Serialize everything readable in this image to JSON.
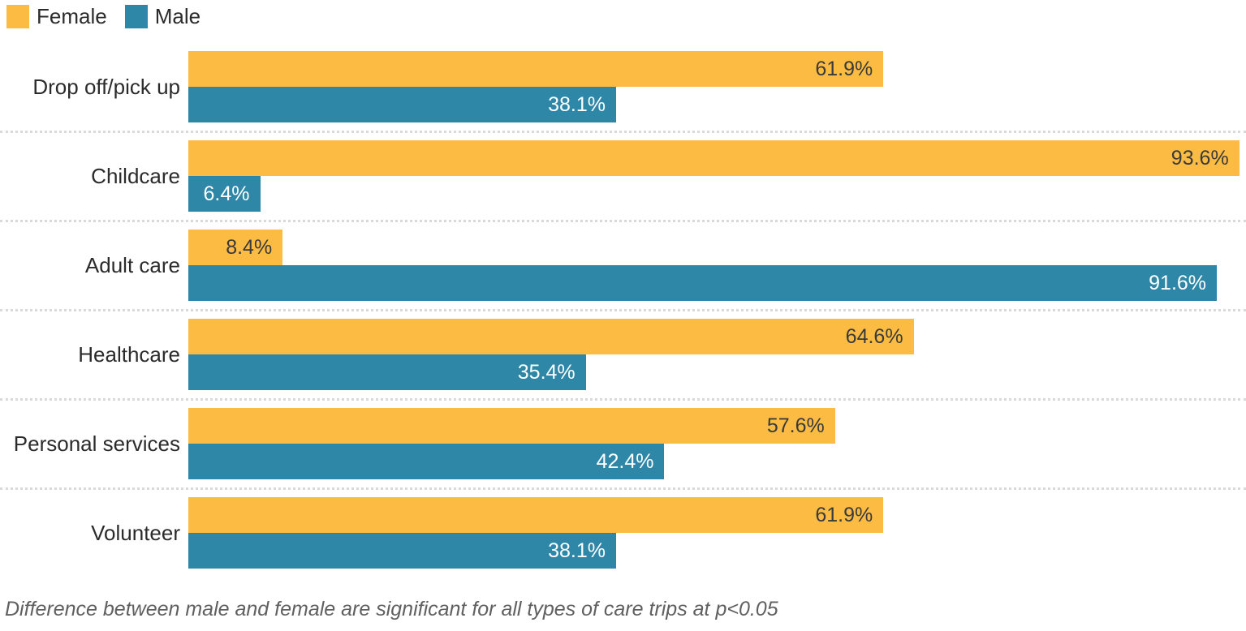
{
  "legend": {
    "female_label": "Female",
    "male_label": "Male"
  },
  "footnote": "Difference between male and female are significant for all types of care trips at p<0.05",
  "colors": {
    "female_bar": "#FCBC44",
    "male_bar": "#2F87A8",
    "label_on_female_bar": "#3a3a3a",
    "label_on_male_bar": "#ffffff",
    "category_text": "#2b2b2b",
    "footnote_text": "#606060",
    "separator": "#d9d9d9"
  },
  "chart_data": {
    "type": "bar",
    "orientation": "horizontal",
    "title": "",
    "xlabel": "",
    "ylabel": "",
    "categories": [
      "Drop off/pick up",
      "Childcare",
      "Adult care",
      "Healthcare",
      "Personal services",
      "Volunteer"
    ],
    "series": [
      {
        "name": "Female",
        "color": "#FCBC44",
        "values": [
          61.9,
          93.6,
          8.4,
          64.6,
          57.6,
          61.9
        ]
      },
      {
        "name": "Male",
        "color": "#2F87A8",
        "values": [
          38.1,
          6.4,
          91.6,
          35.4,
          42.4,
          38.1
        ]
      }
    ],
    "value_suffix": "%",
    "xlim": [
      0,
      94.2
    ],
    "grid": false,
    "legend_position": "top-left",
    "data_labels": "inside-end",
    "annotations": [
      "Difference between male and female are significant for all types of care trips at p<0.05"
    ]
  }
}
